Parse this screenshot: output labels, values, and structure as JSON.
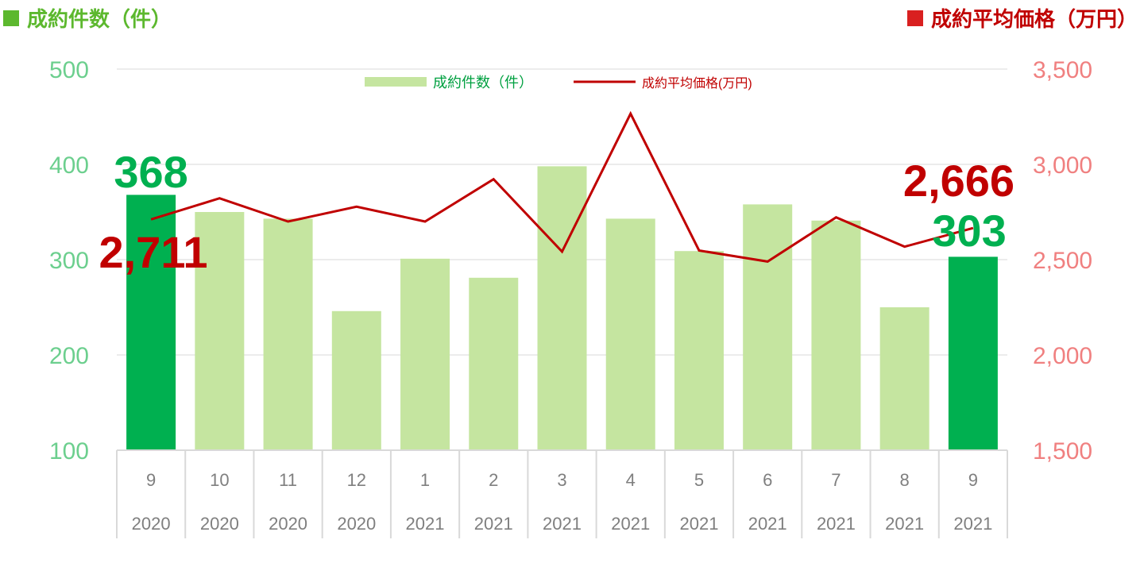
{
  "header": {
    "left_title": "成約件数（件）",
    "right_title": "成約平均価格（万円）"
  },
  "colors": {
    "bar_light": "#c5e5a0",
    "bar_highlight": "#00b050",
    "line": "#c00000",
    "left_axis_text": "#6ccf8e",
    "right_axis_text": "#f08080",
    "header_left": "#5cb82e",
    "header_left_square": "#5cb82e",
    "header_right": "#c00000",
    "header_right_square": "#d92020",
    "legend_bar_text": "#00a040",
    "legend_line_text": "#c00000",
    "label_green": "#00b050",
    "label_red": "#c00000",
    "gridline": "#d9d9d9",
    "axis_table": "#d9d9d9",
    "tick_text": "#7f7f7f"
  },
  "chart_data": {
    "type": "bar+line",
    "categories": [
      {
        "month": "9",
        "year": "2020"
      },
      {
        "month": "10",
        "year": "2020"
      },
      {
        "month": "11",
        "year": "2020"
      },
      {
        "month": "12",
        "year": "2020"
      },
      {
        "month": "1",
        "year": "2021"
      },
      {
        "month": "2",
        "year": "2021"
      },
      {
        "month": "3",
        "year": "2021"
      },
      {
        "month": "4",
        "year": "2021"
      },
      {
        "month": "5",
        "year": "2021"
      },
      {
        "month": "6",
        "year": "2021"
      },
      {
        "month": "7",
        "year": "2021"
      },
      {
        "month": "8",
        "year": "2021"
      },
      {
        "month": "9",
        "year": "2021"
      }
    ],
    "series": [
      {
        "name": "成約件数（件）",
        "type": "bar",
        "axis": "left",
        "values": [
          368,
          350,
          343,
          246,
          301,
          281,
          398,
          343,
          309,
          358,
          341,
          250,
          303
        ],
        "highlighted": [
          0,
          12
        ]
      },
      {
        "name": "成約平均価格(万円)",
        "type": "line",
        "axis": "right",
        "values": [
          2711,
          2822,
          2700,
          2778,
          2700,
          2922,
          2542,
          3266,
          2548,
          2490,
          2722,
          2568,
          2666
        ]
      }
    ],
    "left_axis": {
      "min": 100,
      "max": 500,
      "ticks": [
        "100",
        "200",
        "300",
        "400",
        "500"
      ]
    },
    "right_axis": {
      "min": 1500,
      "max": 3500,
      "ticks": [
        "1,500",
        "2,000",
        "2,500",
        "3,000",
        "3,500"
      ]
    },
    "grid": true,
    "legend_position": "top-center",
    "annotations": [
      {
        "text": "368",
        "series": 0,
        "index": 0
      },
      {
        "text": "2,711",
        "series": 1,
        "index": 0
      },
      {
        "text": "2,666",
        "series": 1,
        "index": 12
      },
      {
        "text": "303",
        "series": 0,
        "index": 12
      }
    ]
  }
}
